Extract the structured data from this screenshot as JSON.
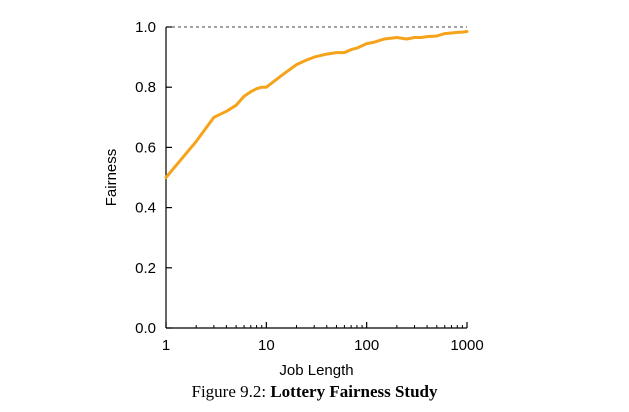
{
  "chart_data": {
    "type": "line",
    "xlabel": "Job Length",
    "ylabel": "Fairness",
    "x_scale": "log",
    "xlim": [
      1,
      1000
    ],
    "ylim": [
      0.0,
      1.0
    ],
    "x_ticks": [
      1,
      10,
      100,
      1000
    ],
    "x_tick_labels": [
      "1",
      "10",
      "100",
      "1000"
    ],
    "y_ticks": [
      0.0,
      0.2,
      0.4,
      0.6,
      0.8,
      1.0
    ],
    "y_tick_labels": [
      "0.0",
      "0.2",
      "0.4",
      "0.6",
      "0.8",
      "1.0"
    ],
    "reference_line": {
      "y": 1.0,
      "style": "dashed"
    },
    "grid": false,
    "series": [
      {
        "color": "#f5a31a",
        "x": [
          1,
          2,
          3,
          4,
          5,
          6,
          7,
          8,
          9,
          10,
          15,
          20,
          25,
          30,
          40,
          50,
          60,
          70,
          80,
          100,
          120,
          150,
          200,
          250,
          300,
          350,
          400,
          500,
          600,
          700,
          800,
          900,
          1000
        ],
        "y": [
          0.5,
          0.62,
          0.7,
          0.72,
          0.74,
          0.77,
          0.785,
          0.795,
          0.8,
          0.8,
          0.845,
          0.875,
          0.89,
          0.9,
          0.91,
          0.915,
          0.915,
          0.925,
          0.93,
          0.945,
          0.95,
          0.96,
          0.965,
          0.96,
          0.965,
          0.965,
          0.968,
          0.97,
          0.978,
          0.98,
          0.982,
          0.983,
          0.985
        ]
      }
    ]
  },
  "caption": {
    "prefix": "Figure 9.2: ",
    "title": "Lottery Fairness Study"
  }
}
